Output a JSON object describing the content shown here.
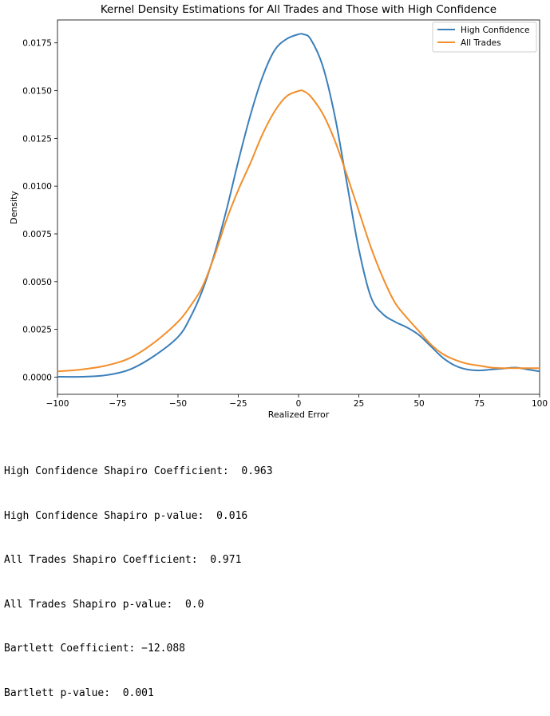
{
  "chart_data": {
    "type": "line",
    "title": "Kernel Density Estimations for All Trades and Those with High Confidence",
    "xlabel": "Realized Error",
    "ylabel": "Density",
    "xlim": [
      -100,
      100
    ],
    "ylim": [
      -0.0009,
      0.0187
    ],
    "xticks": [
      -100,
      -75,
      -50,
      -25,
      0,
      25,
      50,
      75,
      100
    ],
    "xtick_labels": [
      "−100",
      "−75",
      "−50",
      "−25",
      "0",
      "25",
      "50",
      "75",
      "100"
    ],
    "yticks": [
      0.0,
      0.0025,
      0.005,
      0.0075,
      0.01,
      0.0125,
      0.015,
      0.0175
    ],
    "ytick_labels": [
      "0.0000",
      "0.0025",
      "0.0050",
      "0.0075",
      "0.0100",
      "0.0125",
      "0.0150",
      "0.0175"
    ],
    "grid": false,
    "legend_position": "top-right",
    "series": [
      {
        "name": "High Confidence",
        "color": "#3b7fba",
        "points": [
          [
            -100,
            2e-05
          ],
          [
            -90,
            2e-05
          ],
          [
            -80,
            0.0001
          ],
          [
            -70,
            0.0004
          ],
          [
            -60,
            0.0011
          ],
          [
            -50,
            0.0021
          ],
          [
            -45,
            0.0031
          ],
          [
            -40,
            0.0045
          ],
          [
            -35,
            0.0064
          ],
          [
            -30,
            0.0087
          ],
          [
            -25,
            0.0113
          ],
          [
            -20,
            0.0137
          ],
          [
            -15,
            0.0157
          ],
          [
            -10,
            0.0171
          ],
          [
            -5,
            0.0177
          ],
          [
            0,
            0.01795
          ],
          [
            2,
            0.01795
          ],
          [
            5,
            0.0177
          ],
          [
            10,
            0.0163
          ],
          [
            15,
            0.0137
          ],
          [
            20,
            0.0102
          ],
          [
            25,
            0.0067
          ],
          [
            30,
            0.0042
          ],
          [
            35,
            0.0033
          ],
          [
            40,
            0.0029
          ],
          [
            45,
            0.0026
          ],
          [
            50,
            0.0022
          ],
          [
            55,
            0.0016
          ],
          [
            60,
            0.001
          ],
          [
            65,
            0.0006
          ],
          [
            70,
            0.0004
          ],
          [
            75,
            0.00035
          ],
          [
            80,
            0.0004
          ],
          [
            85,
            0.00045
          ],
          [
            90,
            0.0005
          ],
          [
            95,
            0.0004
          ],
          [
            100,
            0.0003
          ]
        ]
      },
      {
        "name": "All Trades",
        "color": "#f28e2b",
        "points": [
          [
            -100,
            0.0003
          ],
          [
            -90,
            0.0004
          ],
          [
            -80,
            0.0006
          ],
          [
            -70,
            0.001
          ],
          [
            -60,
            0.0018
          ],
          [
            -50,
            0.0029
          ],
          [
            -45,
            0.0037
          ],
          [
            -40,
            0.0047
          ],
          [
            -35,
            0.0063
          ],
          [
            -30,
            0.0082
          ],
          [
            -25,
            0.0098
          ],
          [
            -20,
            0.0112
          ],
          [
            -15,
            0.0127
          ],
          [
            -10,
            0.0139
          ],
          [
            -5,
            0.0147
          ],
          [
            0,
            0.01498
          ],
          [
            2,
            0.01498
          ],
          [
            5,
            0.0147
          ],
          [
            10,
            0.0138
          ],
          [
            15,
            0.0124
          ],
          [
            20,
            0.0106
          ],
          [
            25,
            0.0087
          ],
          [
            30,
            0.0068
          ],
          [
            35,
            0.0052
          ],
          [
            40,
            0.0039
          ],
          [
            45,
            0.0031
          ],
          [
            50,
            0.0024
          ],
          [
            55,
            0.0017
          ],
          [
            60,
            0.0012
          ],
          [
            65,
            0.0009
          ],
          [
            70,
            0.0007
          ],
          [
            75,
            0.0006
          ],
          [
            80,
            0.0005
          ],
          [
            85,
            0.00047
          ],
          [
            90,
            0.00047
          ],
          [
            95,
            0.00047
          ],
          [
            100,
            0.00047
          ]
        ]
      }
    ]
  },
  "stats": [
    "High Confidence Shapiro Coefficient:  0.963",
    "High Confidence Shapiro p-value:  0.016",
    "All Trades Shapiro Coefficient:  0.971",
    "All Trades Shapiro p-value:  0.0",
    "Bartlett Coefficient: −12.088",
    "Bartlett p-value:  0.001"
  ]
}
